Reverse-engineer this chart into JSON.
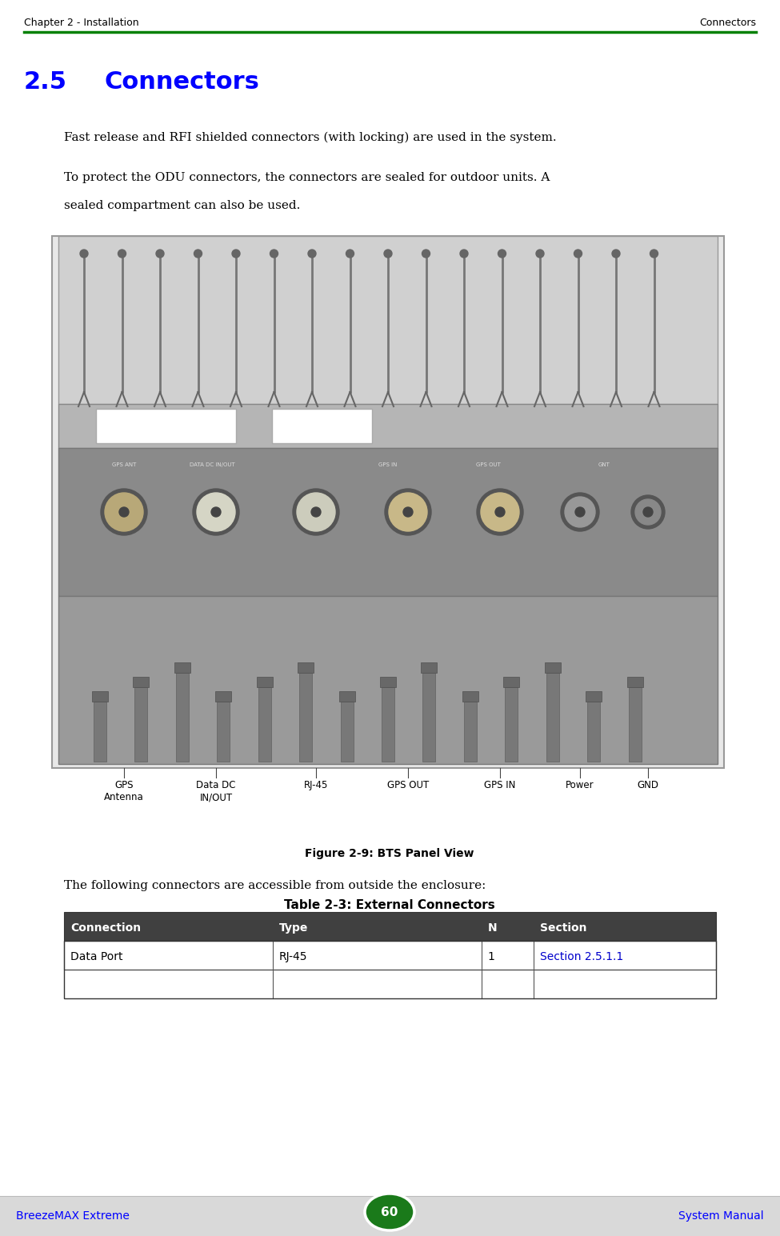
{
  "page_width": 9.75,
  "page_height": 15.45,
  "bg_color": "#ffffff",
  "footer_bg": "#d9d9d9",
  "header_line_color": "#008000",
  "blue_color": "#0000ff",
  "black_color": "#000000",
  "green_circle_color": "#1a7a1a",
  "header_left": "Chapter 2 - Installation",
  "header_right": "Connectors",
  "section_number": "2.5",
  "section_title": "Connectors",
  "para1": "Fast release and RFI shielded connectors (with locking) are used in the system.",
  "para2_line1": "To protect the ODU connectors, the connectors are sealed for outdoor units. A",
  "para2_line2": "sealed compartment can also be used.",
  "figure_caption": "Figure 2-9: BTS Panel View",
  "figure_note": "The following connectors are accessible from outside the enclosure:",
  "table_title": "Table 2-3: External Connectors",
  "table_header": [
    "Connection",
    "Type",
    "N",
    "Section"
  ],
  "table_row": [
    "Data Port",
    "RJ-45",
    "1",
    "Section 2.5.1.1"
  ],
  "table_header_bg": "#404040",
  "table_header_fg": "#ffffff",
  "table_row_bg": "#ffffff",
  "table_row_fg": "#000000",
  "table_section_color": "#0000cc",
  "footer_left": "BreezeMAX Extreme",
  "footer_center": "60",
  "footer_right": "System Manual"
}
